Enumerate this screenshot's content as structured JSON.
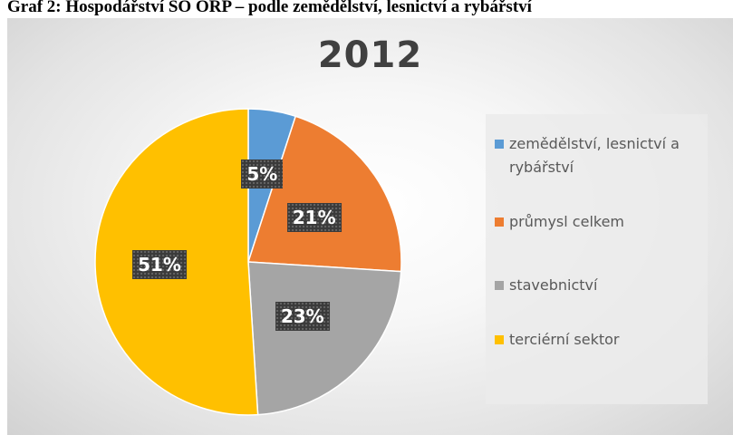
{
  "caption": "Graf 2: Hospodářství SO ORP – podle zemědělství, lesnictví a rybářství",
  "chart_data": {
    "type": "pie",
    "title": "2012",
    "slices": [
      {
        "name": "zemědělství, lesnictví a rybářství",
        "value": 5,
        "label": "5%",
        "color": "#5b9bd5"
      },
      {
        "name": "průmysl celkem",
        "value": 21,
        "label": "21%",
        "color": "#ed7d31"
      },
      {
        "name": "stavebnictví",
        "value": 23,
        "label": "23%",
        "color": "#a5a5a5"
      },
      {
        "name": "terciérní sektor",
        "value": 51,
        "label": "51%",
        "color": "#ffc000"
      }
    ],
    "legend_position": "right"
  }
}
